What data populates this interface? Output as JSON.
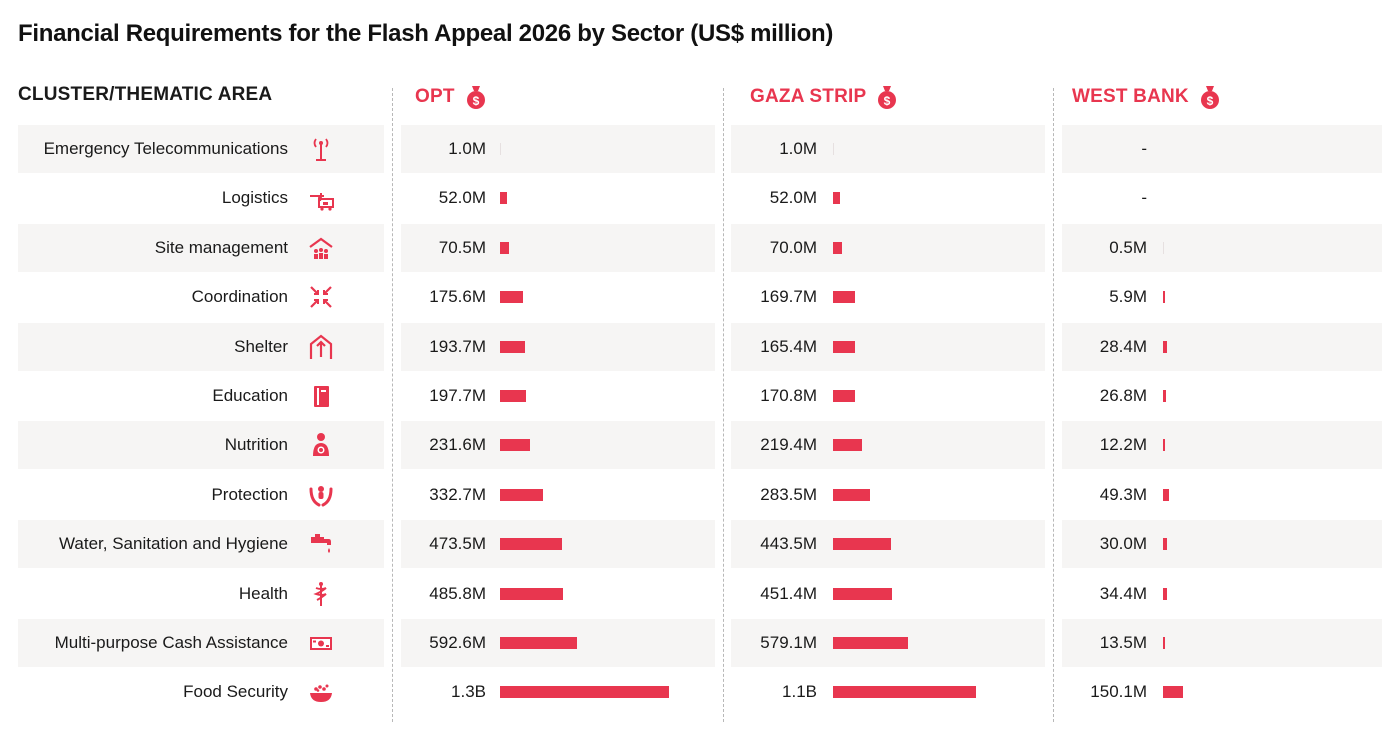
{
  "title": "Financial Requirements for the Flash Appeal 2026 by Sector (US$ million)",
  "headers": {
    "sector": "CLUSTER/THEMATIC AREA",
    "opt": "OPT",
    "gaza": "GAZA STRIP",
    "westbank": "WEST BANK"
  },
  "colors": {
    "accent": "#e8364f",
    "row_bg": "#f6f5f4"
  },
  "chart_data": {
    "type": "bar",
    "title": "Financial Requirements for the Flash Appeal 2026 by Sector (US$ million)",
    "unit": "US$ million",
    "categories": [
      "Emergency Telecommunications",
      "Logistics",
      "Site management",
      "Coordination",
      "Shelter",
      "Education",
      "Nutrition",
      "Protection",
      "Water, Sanitation and Hygiene",
      "Health",
      "Multi-purpose Cash Assistance",
      "Food Security"
    ],
    "icons": [
      "antenna-icon",
      "logistics-icon",
      "site-management-icon",
      "coordination-icon",
      "shelter-icon",
      "education-icon",
      "nutrition-icon",
      "protection-icon",
      "water-tap-icon",
      "health-icon",
      "cash-icon",
      "food-bowl-icon"
    ],
    "series": [
      {
        "name": "OPT",
        "values": [
          1.0,
          52.0,
          70.5,
          175.6,
          193.7,
          197.7,
          231.6,
          332.7,
          473.5,
          485.8,
          592.6,
          1300
        ],
        "labels": [
          "1.0M",
          "52.0M",
          "70.5M",
          "175.6M",
          "193.7M",
          "197.7M",
          "231.6M",
          "332.7M",
          "473.5M",
          "485.8M",
          "592.6M",
          "1.3B"
        ]
      },
      {
        "name": "GAZA STRIP",
        "values": [
          1.0,
          52.0,
          70.0,
          169.7,
          165.4,
          170.8,
          219.4,
          283.5,
          443.5,
          451.4,
          579.1,
          1100
        ],
        "labels": [
          "1.0M",
          "52.0M",
          "70.0M",
          "169.7M",
          "165.4M",
          "170.8M",
          "219.4M",
          "283.5M",
          "443.5M",
          "451.4M",
          "579.1M",
          "1.1B"
        ]
      },
      {
        "name": "WEST BANK",
        "values": [
          0,
          0,
          0.5,
          5.9,
          28.4,
          26.8,
          12.2,
          49.3,
          30.0,
          34.4,
          13.5,
          150.1
        ],
        "labels": [
          "-",
          "-",
          "0.5M",
          "5.9M",
          "28.4M",
          "26.8M",
          "12.2M",
          "49.3M",
          "30.0M",
          "34.4M",
          "13.5M",
          "150.1M"
        ]
      }
    ]
  }
}
